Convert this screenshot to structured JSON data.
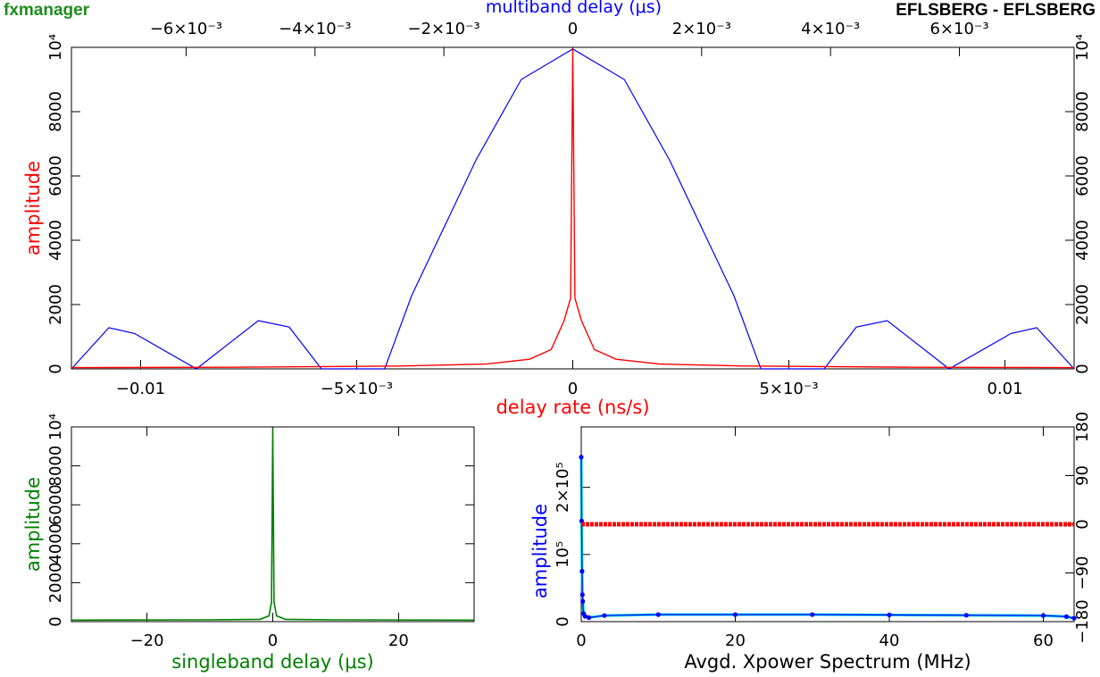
{
  "header": {
    "app_name": "fxmanager",
    "baseline": "EFLSBERG - EFLSBERG",
    "app_color": "#1e8c1e",
    "baseline_color": "#000000"
  },
  "colors": {
    "red": "#ff0000",
    "blue": "#0000ff",
    "green": "#008000",
    "cyan": "#00dddd",
    "axis": "#000000"
  },
  "chart_data": [
    {
      "type": "line",
      "xlabel": "delay rate (ns/s)",
      "ylabel": "amplitude",
      "top_xlabel": "multiband delay (μs)",
      "xlim": [
        -0.0116,
        0.0116
      ],
      "ylim": [
        0,
        10000
      ],
      "x_ticks": [
        "−0.01",
        "−5×10⁻³",
        "0",
        "5×10⁻³",
        "0.01"
      ],
      "x_tick_values": [
        -0.01,
        -0.005,
        0,
        0.005,
        0.01
      ],
      "top_xlim": [
        -0.00778,
        0.00778
      ],
      "top_x_ticks": [
        "−6×10⁻³",
        "−4×10⁻³",
        "−2×10⁻³",
        "0",
        "2×10⁻³",
        "4×10⁻³",
        "6×10⁻³"
      ],
      "top_x_tick_values": [
        -0.006,
        -0.004,
        -0.002,
        0,
        0.002,
        0.004,
        0.006
      ],
      "y_ticks": [
        "0",
        "2000",
        "4000",
        "6000",
        "8000",
        "10⁴"
      ],
      "y_tick_values": [
        0,
        2000,
        4000,
        6000,
        8000,
        10000
      ],
      "series": [
        {
          "color": "#0000ff",
          "x_axis": "top",
          "x": [
            -0.00778,
            -0.0072,
            -0.0068,
            -0.00584,
            -0.00488,
            -0.0044,
            -0.0039,
            -0.00292,
            -0.0025,
            -0.0015,
            -0.0008,
            0,
            0.0008,
            0.0015,
            0.0025,
            0.00292,
            0.0039,
            0.0044,
            0.00488,
            0.00584,
            0.0068,
            0.0072,
            0.00778
          ],
          "y": [
            0,
            1280,
            1100,
            0,
            1500,
            1300,
            0,
            0,
            2280,
            6500,
            9000,
            9950,
            9000,
            6500,
            2280,
            0,
            0,
            1300,
            1500,
            0,
            1100,
            1280,
            0
          ]
        },
        {
          "color": "#ff0000",
          "x_axis": "bottom",
          "x": [
            -0.0116,
            -0.008,
            -0.004,
            -0.002,
            -0.001,
            -0.0005,
            -0.0002,
            -5e-05,
            0,
            5e-05,
            0.0002,
            0.0005,
            0.001,
            0.002,
            0.004,
            0.008,
            0.0116
          ],
          "y": [
            40,
            50,
            90,
            150,
            300,
            600,
            1500,
            2200,
            9950,
            2200,
            1500,
            600,
            300,
            150,
            90,
            50,
            40
          ]
        }
      ]
    },
    {
      "type": "line",
      "xlabel": "singleband delay (μs)",
      "ylabel": "amplitude",
      "xlim": [
        -32,
        32
      ],
      "ylim": [
        0,
        10000
      ],
      "x_ticks": [
        "−20",
        "0",
        "20"
      ],
      "x_tick_values": [
        -20,
        0,
        20
      ],
      "y_ticks": [
        "0",
        "2000",
        "4000",
        "6000",
        "8000",
        "10⁴"
      ],
      "y_tick_values": [
        0,
        2000,
        4000,
        6000,
        8000,
        10000
      ],
      "series": [
        {
          "color": "#008000",
          "x": [
            -32,
            -10,
            -2,
            -0.6,
            -0.2,
            0,
            0.2,
            0.6,
            2,
            10,
            32
          ],
          "y": [
            80,
            90,
            120,
            300,
            1000,
            9950,
            1000,
            300,
            120,
            90,
            80
          ]
        }
      ]
    },
    {
      "type": "scatter",
      "xlabel": "Avgd. Xpower Spectrum (MHz)",
      "ylabel": "amplitude",
      "xlim": [
        0,
        64
      ],
      "ylim": [
        0,
        290000
      ],
      "x_ticks": [
        "0",
        "20",
        "40",
        "60"
      ],
      "x_tick_values": [
        0,
        20,
        40,
        60
      ],
      "y_ticks": [
        "0",
        "10⁵",
        "2×10⁵"
      ],
      "y_tick_values": [
        0,
        100000,
        200000
      ],
      "right_ylim": [
        -180,
        180
      ],
      "right_y_ticks": [
        "−180",
        "−90",
        "0",
        "90",
        "180"
      ],
      "right_y_tick_values": [
        -180,
        -90,
        0,
        90,
        180
      ],
      "series": [
        {
          "color": "#0000ff",
          "line_color": "#00dddd",
          "axis": "left",
          "x": [
            0,
            0.05,
            0.1,
            0.15,
            0.2,
            0.3,
            0.5,
            1,
            3,
            10,
            20,
            30,
            40,
            50,
            60,
            63,
            64
          ],
          "y": [
            245000,
            150000,
            75000,
            40000,
            30000,
            12000,
            8000,
            6000,
            9000,
            10500,
            10500,
            10500,
            10000,
            9500,
            9000,
            7500,
            5000
          ]
        },
        {
          "color": "#ff0000",
          "axis": "right",
          "x": [
            0,
            64
          ],
          "y": [
            0,
            0
          ]
        }
      ]
    }
  ]
}
